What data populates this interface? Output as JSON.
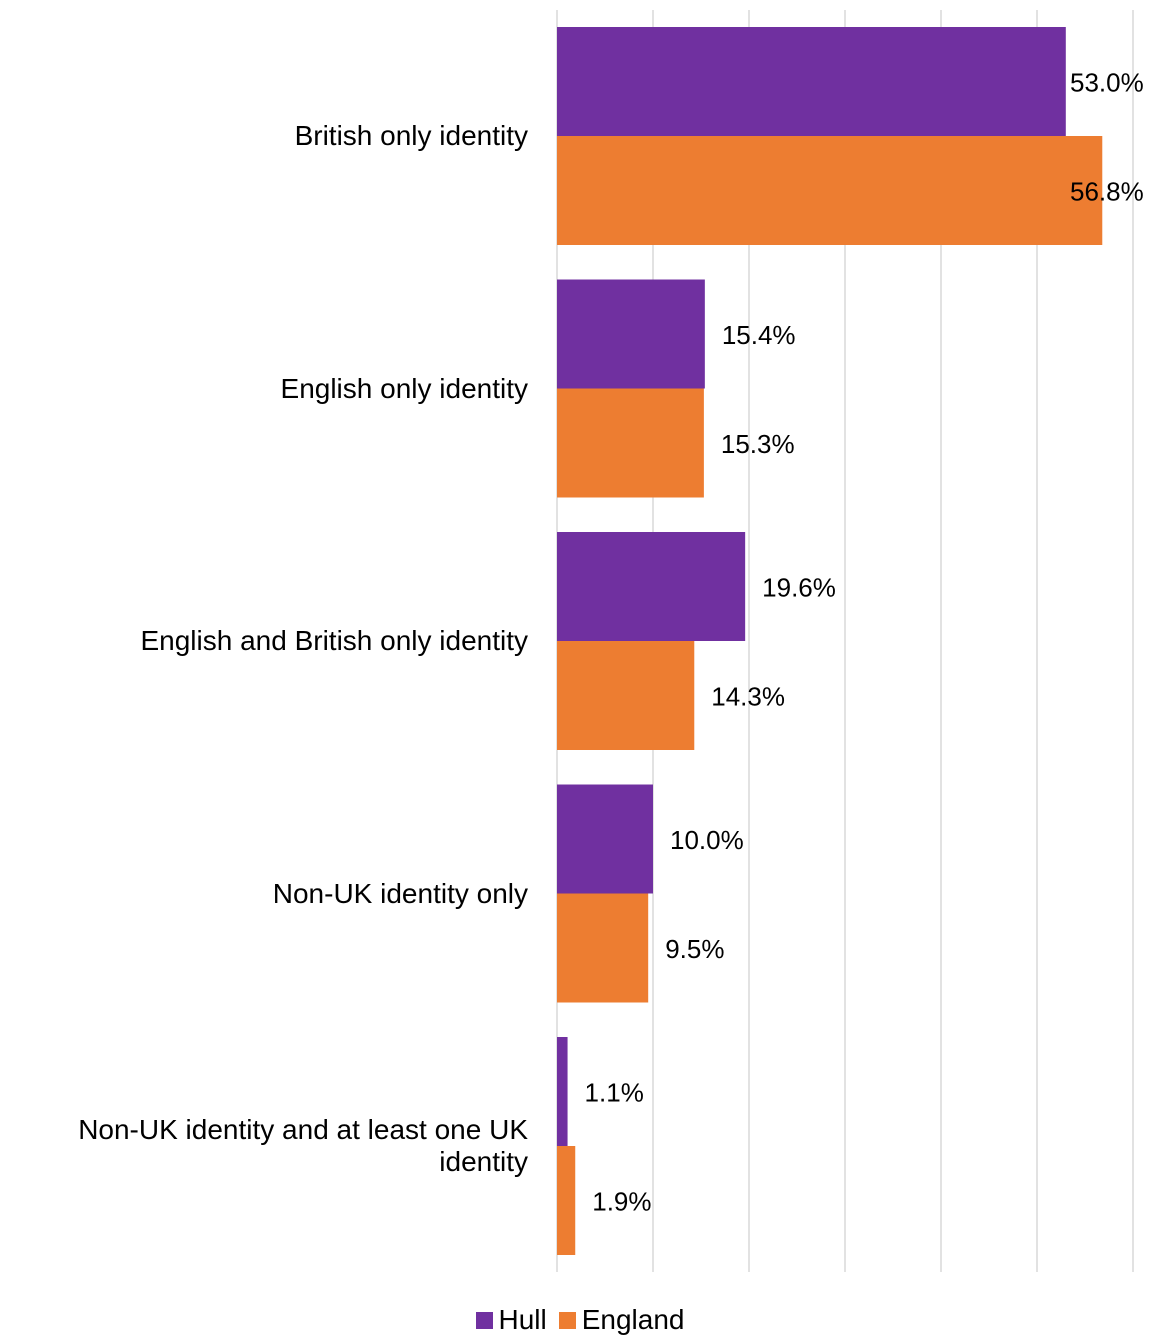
{
  "chart_data": {
    "type": "bar",
    "orientation": "horizontal",
    "categories": [
      "British only identity",
      "English only identity",
      "English and British only identity",
      "Non-UK identity only",
      "Non-UK identity and at least one UK identity"
    ],
    "series": [
      {
        "name": "Hull",
        "color": "#7030a0",
        "values": [
          53.0,
          15.4,
          19.6,
          10.0,
          1.1
        ],
        "labels": [
          "53.0%",
          "15.4%",
          "19.6%",
          "10.0%",
          "1.1%"
        ]
      },
      {
        "name": "England",
        "color": "#ed7d31",
        "values": [
          56.8,
          15.3,
          14.3,
          9.5,
          1.9
        ],
        "labels": [
          "56.8%",
          "15.3%",
          "14.3%",
          "9.5%",
          "1.9%"
        ]
      }
    ],
    "xlim": [
      0,
      60
    ],
    "grid": true,
    "legend": "bottom"
  }
}
